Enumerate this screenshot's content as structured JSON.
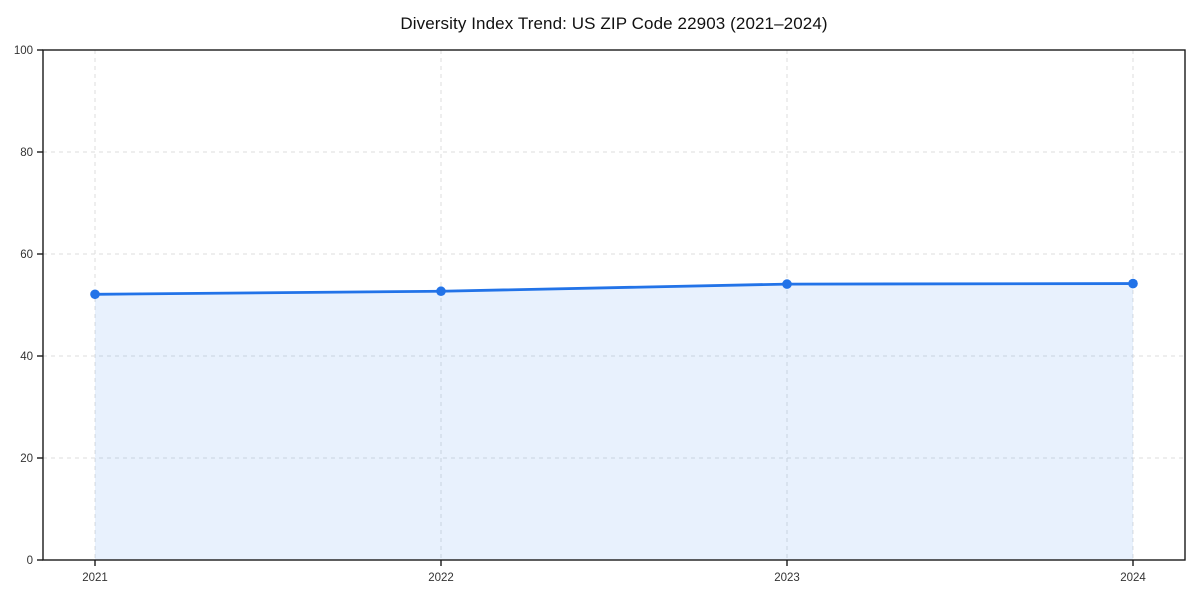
{
  "chart_data": {
    "type": "area",
    "title": "Diversity Index Trend: US ZIP Code 22903 (2021–2024)",
    "xlabel": "",
    "ylabel": "",
    "x": [
      2021,
      2022,
      2023,
      2024
    ],
    "series": [
      {
        "name": "Diversity Index",
        "values": [
          52.1,
          52.7,
          54.1,
          54.2
        ]
      }
    ],
    "ylim": [
      0,
      100
    ],
    "yticks": [
      0,
      20,
      40,
      60,
      80,
      100
    ],
    "grid": "dashed-both-axes",
    "legend": "none",
    "marker": "circle",
    "colors": {
      "line": "#2273e8",
      "marker": "#2273e8",
      "fill": "rgba(34, 115, 232, 0.10)",
      "grid": "#dddddd",
      "axis": "#1a1a1a",
      "tick_label": "#333333",
      "title": "#111111",
      "background": "#ffffff"
    }
  }
}
